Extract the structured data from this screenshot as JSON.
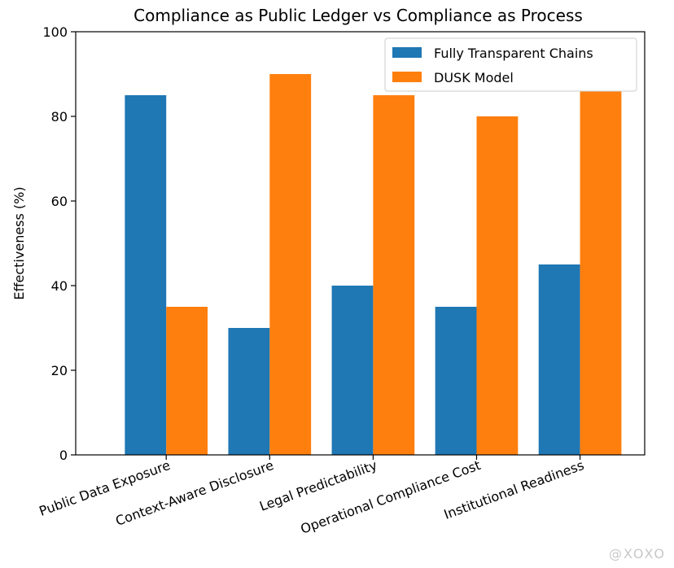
{
  "chart_data": {
    "type": "bar",
    "title": "Compliance as Public Ledger vs Compliance as Process",
    "xlabel": "",
    "ylabel": "Effectiveness (%)",
    "ylim": [
      0,
      100
    ],
    "yticks": [
      0,
      20,
      40,
      60,
      80,
      100
    ],
    "categories": [
      "Public Data Exposure",
      "Context-Aware Disclosure",
      "Legal Predictability",
      "Operational Compliance Cost",
      "Institutional Readiness"
    ],
    "series": [
      {
        "name": "Fully Transparent Chains",
        "color": "#1f77b4",
        "values": [
          85,
          30,
          40,
          35,
          45
        ]
      },
      {
        "name": "DUSK Model",
        "color": "#ff7f0e",
        "values": [
          35,
          90,
          85,
          80,
          88
        ]
      }
    ],
    "legend_position": "top-right",
    "grid": false,
    "tick_label_rotation_deg": -20
  },
  "watermark": {
    "text": "@XOXO"
  }
}
